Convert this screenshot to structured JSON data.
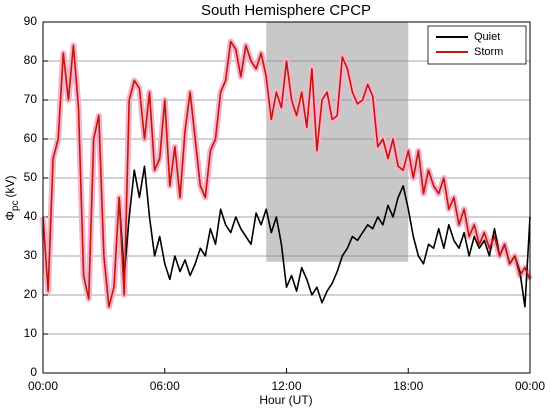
{
  "chart_data": {
    "type": "line",
    "title": "South Hemisphere CPCP",
    "xlabel": "Hour (UT)",
    "ylabel": {
      "symbol": "Φ",
      "subscript": "pc",
      "unit": "(kV)"
    },
    "x": [
      0,
      0.25,
      0.5,
      0.75,
      1,
      1.25,
      1.5,
      1.75,
      2,
      2.25,
      2.5,
      2.75,
      3,
      3.25,
      3.5,
      3.75,
      4,
      4.25,
      4.5,
      4.75,
      5,
      5.25,
      5.5,
      5.75,
      6,
      6.25,
      6.5,
      6.75,
      7,
      7.25,
      7.5,
      7.75,
      8,
      8.25,
      8.5,
      8.75,
      9,
      9.25,
      9.5,
      9.75,
      10,
      10.25,
      10.5,
      10.75,
      11,
      11.25,
      11.5,
      11.75,
      12,
      12.25,
      12.5,
      12.75,
      13,
      13.25,
      13.5,
      13.75,
      14,
      14.25,
      14.5,
      14.75,
      15,
      15.25,
      15.5,
      15.75,
      16,
      16.25,
      16.5,
      16.75,
      17,
      17.25,
      17.5,
      17.75,
      18,
      18.25,
      18.5,
      18.75,
      19,
      19.25,
      19.5,
      19.75,
      20,
      20.25,
      20.5,
      20.75,
      21,
      21.25,
      21.5,
      21.75,
      22,
      22.25,
      22.5,
      22.75,
      23,
      23.25,
      23.5,
      23.75,
      24
    ],
    "series": [
      {
        "name": "Quiet",
        "color": "#000000",
        "values": [
          null,
          null,
          null,
          null,
          null,
          null,
          null,
          null,
          null,
          null,
          null,
          null,
          null,
          null,
          null,
          45,
          25,
          40,
          52,
          45,
          53,
          40,
          30,
          35,
          28,
          24,
          30,
          26,
          29,
          25,
          28,
          32,
          30,
          37,
          33,
          42,
          38,
          36,
          40,
          37,
          35,
          33,
          41,
          38,
          42,
          36,
          40,
          33,
          22,
          25,
          21,
          27,
          24,
          20,
          22,
          18,
          21,
          23,
          26,
          30,
          32,
          35,
          34,
          36,
          38,
          37,
          40,
          38,
          43,
          40,
          45,
          48,
          42,
          35,
          30,
          28,
          33,
          32,
          37,
          32,
          38,
          34,
          32,
          36,
          30,
          35,
          32,
          34,
          30,
          37,
          30,
          33,
          28,
          30,
          26,
          17,
          40
        ]
      },
      {
        "name": "Storm",
        "color": "#c0180c",
        "band_color": "#f6b3c9",
        "values": [
          40,
          21,
          55,
          60,
          82,
          70,
          84,
          68,
          25,
          19,
          60,
          66,
          30,
          17,
          22,
          45,
          20,
          70,
          75,
          73,
          60,
          72,
          52,
          55,
          70,
          48,
          58,
          45,
          62,
          72,
          60,
          48,
          45,
          57,
          60,
          72,
          75,
          85,
          83,
          76,
          84,
          80,
          78,
          82,
          76,
          65,
          72,
          68,
          80,
          70,
          66,
          72,
          63,
          78,
          57,
          70,
          72,
          65,
          66,
          81,
          78,
          72,
          69,
          70,
          74,
          71,
          58,
          60,
          55,
          60,
          53,
          52,
          57,
          50,
          57,
          46,
          52,
          48,
          46,
          50,
          42,
          45,
          38,
          42,
          35,
          38,
          33,
          36,
          32,
          35,
          30,
          33,
          28,
          30,
          25,
          27,
          24
        ]
      }
    ],
    "xlim": [
      0,
      24
    ],
    "xticks": [
      {
        "value": 0,
        "label": "00:00"
      },
      {
        "value": 6,
        "label": "06:00"
      },
      {
        "value": 12,
        "label": "12:00"
      },
      {
        "value": 18,
        "label": "18:00"
      },
      {
        "value": 24,
        "label": "00:00"
      }
    ],
    "ylim": [
      0,
      90
    ],
    "yticks": [
      0,
      10,
      20,
      30,
      40,
      50,
      60,
      70,
      80,
      90
    ],
    "grid": "y",
    "legend": "upper right",
    "shaded_region": {
      "x": [
        11,
        18
      ],
      "y": [
        28.5,
        90
      ],
      "color": "#c8c8c8"
    }
  }
}
